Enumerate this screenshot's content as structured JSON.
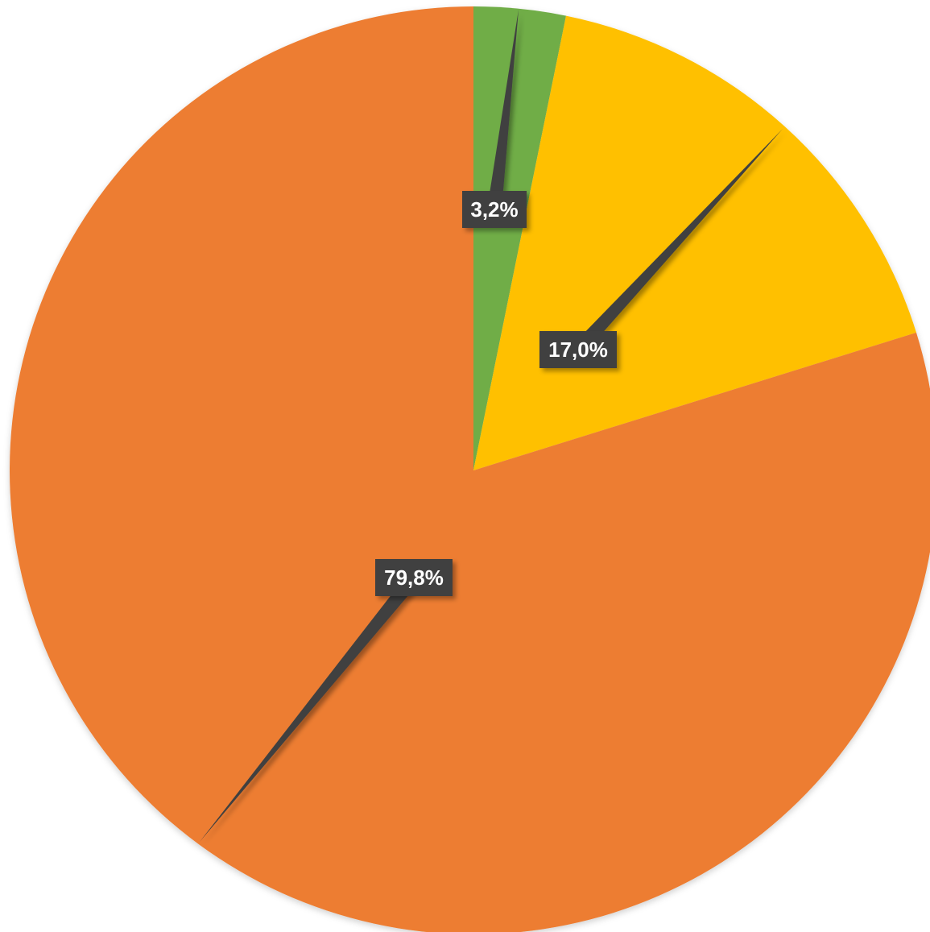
{
  "chart_data": {
    "type": "pie",
    "start_angle_deg": 0,
    "direction": "clockwise",
    "slices": [
      {
        "value": 3.2,
        "label": "3,2%",
        "color": "#70AD47"
      },
      {
        "value": 17.0,
        "label": "17,0%",
        "color": "#FFC000"
      },
      {
        "value": 79.8,
        "label": "79,8%",
        "color": "#ED7D31"
      }
    ],
    "data_label_style": {
      "background": "#404040",
      "text_color": "#FFFFFF"
    }
  }
}
